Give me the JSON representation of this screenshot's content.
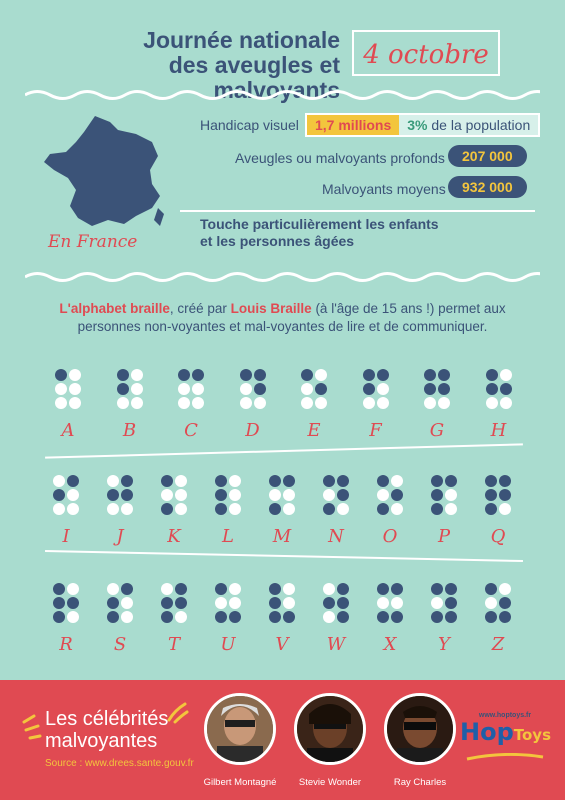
{
  "header": {
    "title_line1": "Journée nationale",
    "title_line2": "des aveugles et malvoyants",
    "date": "4 octobre"
  },
  "stats": {
    "region_label": "En France",
    "handicap_label": "Handicap visuel",
    "handicap_count": "1,7 millions",
    "handicap_pct": "3%",
    "handicap_pct_suffix": "de la population",
    "profound_label": "Aveugles ou malvoyants profonds",
    "profound_value": "207 000",
    "moderate_label": "Malvoyants moyens",
    "moderate_value": "932 000",
    "touch_line1": "Touche particulièrement les enfants",
    "touch_line2": "et les personnes âgées"
  },
  "braille": {
    "intro_part1": "L'alphabet braille",
    "intro_part2": ", créé par ",
    "intro_part3": "Louis Braille",
    "intro_part4": " (à l'âge de 15 ans !) permet aux",
    "intro_line2": "personnes non-voyantes et mal-voyantes de lire et de communiquer.",
    "letters": [
      {
        "l": "A",
        "d": [
          1
        ]
      },
      {
        "l": "B",
        "d": [
          1,
          2
        ]
      },
      {
        "l": "C",
        "d": [
          1,
          4
        ]
      },
      {
        "l": "D",
        "d": [
          1,
          4,
          5
        ]
      },
      {
        "l": "E",
        "d": [
          1,
          5
        ]
      },
      {
        "l": "F",
        "d": [
          1,
          2,
          4
        ]
      },
      {
        "l": "G",
        "d": [
          1,
          2,
          4,
          5
        ]
      },
      {
        "l": "H",
        "d": [
          1,
          2,
          5
        ]
      },
      {
        "l": "I",
        "d": [
          2,
          4
        ]
      },
      {
        "l": "J",
        "d": [
          2,
          4,
          5
        ]
      },
      {
        "l": "K",
        "d": [
          1,
          3
        ]
      },
      {
        "l": "L",
        "d": [
          1,
          2,
          3
        ]
      },
      {
        "l": "M",
        "d": [
          1,
          3,
          4
        ]
      },
      {
        "l": "N",
        "d": [
          1,
          3,
          4,
          5
        ]
      },
      {
        "l": "O",
        "d": [
          1,
          3,
          5
        ]
      },
      {
        "l": "P",
        "d": [
          1,
          2,
          3,
          4
        ]
      },
      {
        "l": "Q",
        "d": [
          1,
          2,
          3,
          4,
          5
        ]
      },
      {
        "l": "R",
        "d": [
          1,
          2,
          3,
          5
        ]
      },
      {
        "l": "S",
        "d": [
          2,
          3,
          4
        ]
      },
      {
        "l": "T",
        "d": [
          2,
          3,
          4,
          5
        ]
      },
      {
        "l": "U",
        "d": [
          1,
          3,
          6
        ]
      },
      {
        "l": "V",
        "d": [
          1,
          2,
          3,
          6
        ]
      },
      {
        "l": "W",
        "d": [
          2,
          4,
          5,
          6
        ]
      },
      {
        "l": "X",
        "d": [
          1,
          3,
          4,
          6
        ]
      },
      {
        "l": "Y",
        "d": [
          1,
          3,
          4,
          5,
          6
        ]
      },
      {
        "l": "Z",
        "d": [
          1,
          3,
          5,
          6
        ]
      }
    ]
  },
  "footer": {
    "title_line1": "Les célébrités",
    "title_line2": "malvoyantes",
    "source": "Source : www.drees.sante.gouv.fr",
    "celebrities": [
      "Gilbert Montagné",
      "Stevie Wonder",
      "Ray Charles"
    ],
    "logo_url": "www.hoptoys.fr",
    "logo_hop": "Hop",
    "logo_toys": "Toys"
  },
  "colors": {
    "background": "#a9dccf",
    "navy": "#3b5378",
    "red": "#e04a52",
    "yellow": "#f3c53d",
    "white": "#ffffff"
  }
}
